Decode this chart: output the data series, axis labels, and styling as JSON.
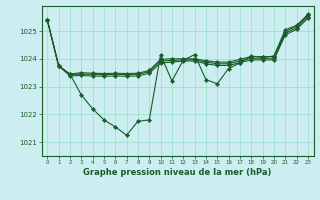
{
  "title": "Graphe pression niveau de la mer (hPa)",
  "bg_color": "#cceef0",
  "grid_color": "#99ddcc",
  "line_color": "#1a5c2a",
  "xlim": [
    -0.5,
    23.5
  ],
  "ylim": [
    1020.5,
    1025.9
  ],
  "yticks": [
    1021,
    1022,
    1023,
    1024,
    1025
  ],
  "xticks": [
    0,
    1,
    2,
    3,
    4,
    5,
    6,
    7,
    8,
    9,
    10,
    11,
    12,
    13,
    14,
    15,
    16,
    17,
    18,
    19,
    20,
    21,
    22,
    23
  ],
  "s1": [
    1025.4,
    1023.75,
    1023.45,
    1022.7,
    1022.2,
    1021.8,
    1021.55,
    1021.25,
    1021.75,
    1021.8,
    1024.15,
    1023.2,
    1023.95,
    1024.15,
    1023.25,
    1023.1,
    1023.65,
    1023.85,
    1024.1,
    1024.05,
    1024.1,
    1025.05,
    1025.2,
    1025.6
  ],
  "s2": [
    1025.4,
    1023.75,
    1023.45,
    1023.5,
    1023.48,
    1023.47,
    1023.48,
    1023.47,
    1023.48,
    1023.58,
    1023.98,
    1024.0,
    1024.0,
    1024.0,
    1023.93,
    1023.88,
    1023.88,
    1023.98,
    1024.08,
    1024.08,
    1024.08,
    1024.98,
    1025.18,
    1025.58
  ],
  "s3": [
    1025.4,
    1023.75,
    1023.42,
    1023.45,
    1023.44,
    1023.43,
    1023.44,
    1023.43,
    1023.44,
    1023.54,
    1023.92,
    1023.94,
    1023.96,
    1023.96,
    1023.88,
    1023.82,
    1023.82,
    1023.92,
    1024.02,
    1024.02,
    1024.02,
    1024.92,
    1025.12,
    1025.52
  ],
  "s4": [
    1025.4,
    1023.75,
    1023.38,
    1023.4,
    1023.38,
    1023.37,
    1023.38,
    1023.37,
    1023.38,
    1023.48,
    1023.85,
    1023.88,
    1023.92,
    1023.92,
    1023.82,
    1023.76,
    1023.76,
    1023.86,
    1023.96,
    1023.96,
    1023.96,
    1024.86,
    1025.06,
    1025.46
  ]
}
